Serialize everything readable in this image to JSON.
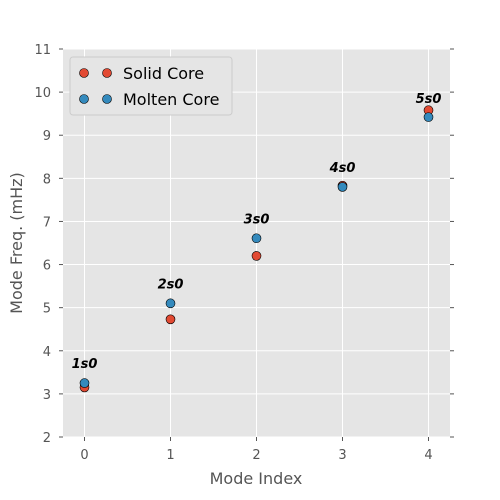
{
  "chart_data": {
    "type": "scatter",
    "xlabel": "Mode Index",
    "ylabel": "Mode Freq. (mHz)",
    "xlim": [
      -0.25,
      4.25
    ],
    "ylim": [
      2,
      11
    ],
    "x_ticks": [
      0,
      1,
      2,
      3,
      4
    ],
    "y_ticks": [
      2,
      3,
      4,
      5,
      6,
      7,
      8,
      9,
      10,
      11
    ],
    "grid": true,
    "legend_position": "top-left",
    "series": [
      {
        "name": "Solid Core",
        "color": "#E24A33",
        "x": [
          0,
          1,
          2,
          3,
          4
        ],
        "y": [
          3.15,
          4.73,
          6.2,
          7.83,
          9.58
        ]
      },
      {
        "name": "Molten Core",
        "color": "#348ABD",
        "x": [
          0,
          1,
          2,
          3,
          4
        ],
        "y": [
          3.25,
          5.1,
          6.61,
          7.8,
          9.42
        ]
      }
    ],
    "annotations": [
      {
        "text": "1s0",
        "x": 0,
        "y": 3.6
      },
      {
        "text": "2s0",
        "x": 1,
        "y": 5.45
      },
      {
        "text": "3s0",
        "x": 2,
        "y": 6.95
      },
      {
        "text": "4s0",
        "x": 3,
        "y": 8.15
      },
      {
        "text": "5s0",
        "x": 4,
        "y": 9.75
      }
    ]
  },
  "colors": {
    "plot_background": "#E5E5E5",
    "grid": "#FFFFFF",
    "text": "#555555"
  }
}
